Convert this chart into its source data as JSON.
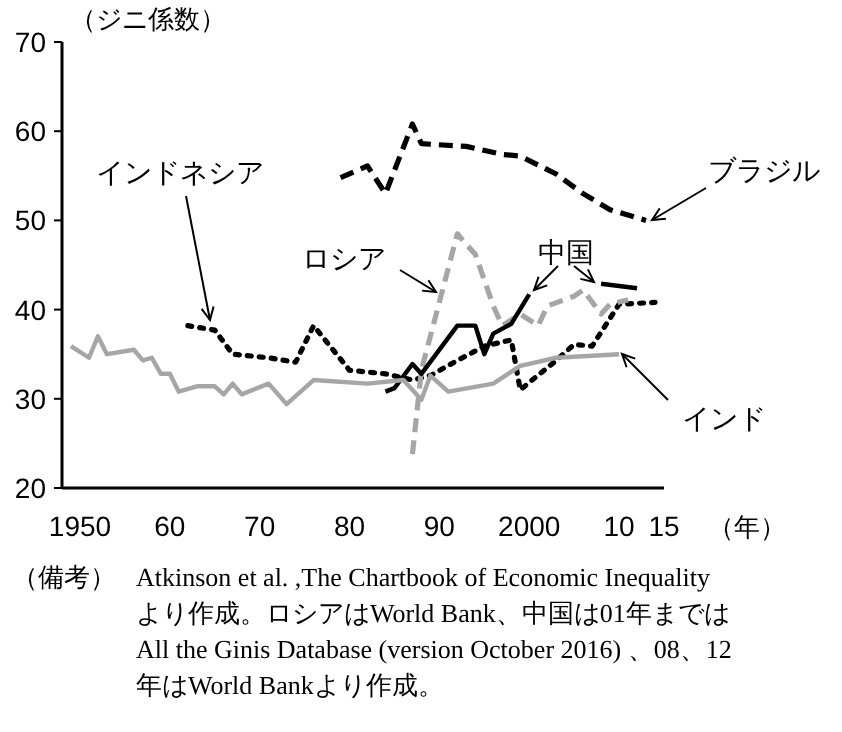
{
  "chart_data": {
    "type": "line",
    "ylabel": "（ジニ係数）",
    "xlabel": "（年）",
    "xlim": [
      1948,
      2015
    ],
    "ylim": [
      20,
      70
    ],
    "yticks": [
      20,
      30,
      40,
      50,
      60,
      70
    ],
    "xticks": [
      1950,
      {
        "value": 1960,
        "label": "60"
      },
      {
        "value": 1970,
        "label": "70"
      },
      {
        "value": 1980,
        "label": "80"
      },
      {
        "value": 1990,
        "label": "90"
      },
      2000,
      {
        "value": 2010,
        "label": "10"
      },
      {
        "value": 2015,
        "label": "15"
      }
    ],
    "series": [
      {
        "name": "ブラジル",
        "color": "#000000",
        "line_style": "dashed",
        "x": [
          1979,
          1982,
          1984,
          1987,
          1988,
          1993,
          1997,
          1999,
          2003,
          2006,
          2009,
          2013
        ],
        "values": [
          54.8,
          56.1,
          53.0,
          60.8,
          58.6,
          58.3,
          57.4,
          57.2,
          55.2,
          53.0,
          51.2,
          50.0
        ]
      },
      {
        "name": "インドネシア",
        "color": "#000000",
        "line_style": "dotted",
        "x": [
          1962,
          1965,
          1967,
          1971,
          1974,
          1976,
          1980,
          1984,
          1987,
          1989,
          1992,
          1995,
          1998,
          1999,
          2003,
          2005,
          2007,
          2010,
          2014
        ],
        "values": [
          38.2,
          37.7,
          35.0,
          34.6,
          34.1,
          38.2,
          33.2,
          32.8,
          32.1,
          32.6,
          34.3,
          35.9,
          36.6,
          31.0,
          34.3,
          36.1,
          35.9,
          40.6,
          40.8
        ]
      },
      {
        "name": "ロシア",
        "color": "#a6a6a6",
        "line_style": "dashed",
        "x": [
          1987,
          1988,
          1992,
          1993,
          1994,
          1996,
          1997,
          1999,
          2001,
          2002,
          2005,
          2006,
          2008,
          2009,
          2011
        ],
        "values": [
          23.8,
          33.2,
          48.5,
          47.3,
          46.2,
          40.4,
          38.2,
          39.5,
          38.2,
          40.4,
          41.5,
          42.2,
          39.5,
          40.6,
          41.1
        ]
      },
      {
        "name": "中国",
        "color": "#000000",
        "line_style": "solid",
        "x": [
          1984,
          1985,
          1987,
          1988,
          1992,
          1994,
          1995,
          1996,
          1998,
          2000,
          2001,
          2008,
          2012
        ],
        "values": [
          30.8,
          31.2,
          33.9,
          32.8,
          38.2,
          38.2,
          35.0,
          37.3,
          38.4,
          41.7,
          null,
          42.9,
          42.4
        ]
      },
      {
        "name": "インド",
        "color": "#a6a6a6",
        "line_style": "solid",
        "x": [
          1949,
          1951,
          1952,
          1953,
          1956,
          1957,
          1958,
          1959,
          1960,
          1961,
          1963,
          1965,
          1966,
          1967,
          1968,
          1971,
          1973,
          1976,
          1982,
          1986,
          1988,
          1989,
          1991,
          1996,
          1999,
          2003,
          2010
        ],
        "values": [
          35.9,
          34.6,
          37.0,
          35.0,
          35.5,
          34.3,
          34.6,
          32.8,
          32.8,
          30.8,
          31.4,
          31.4,
          30.5,
          31.7,
          30.5,
          31.7,
          29.4,
          32.1,
          31.7,
          32.1,
          29.9,
          32.6,
          30.8,
          31.7,
          33.7,
          34.6,
          35.0
        ]
      }
    ],
    "annotations": [
      "（備考）",
      "Atkinson et al. ,The Chartbook of Economic Inequality より作成。ロシアはWorld Bank、中国は01年まではAll the Ginis Database (version October 2016) 、08、12年はWorld Bankより作成。"
    ]
  }
}
